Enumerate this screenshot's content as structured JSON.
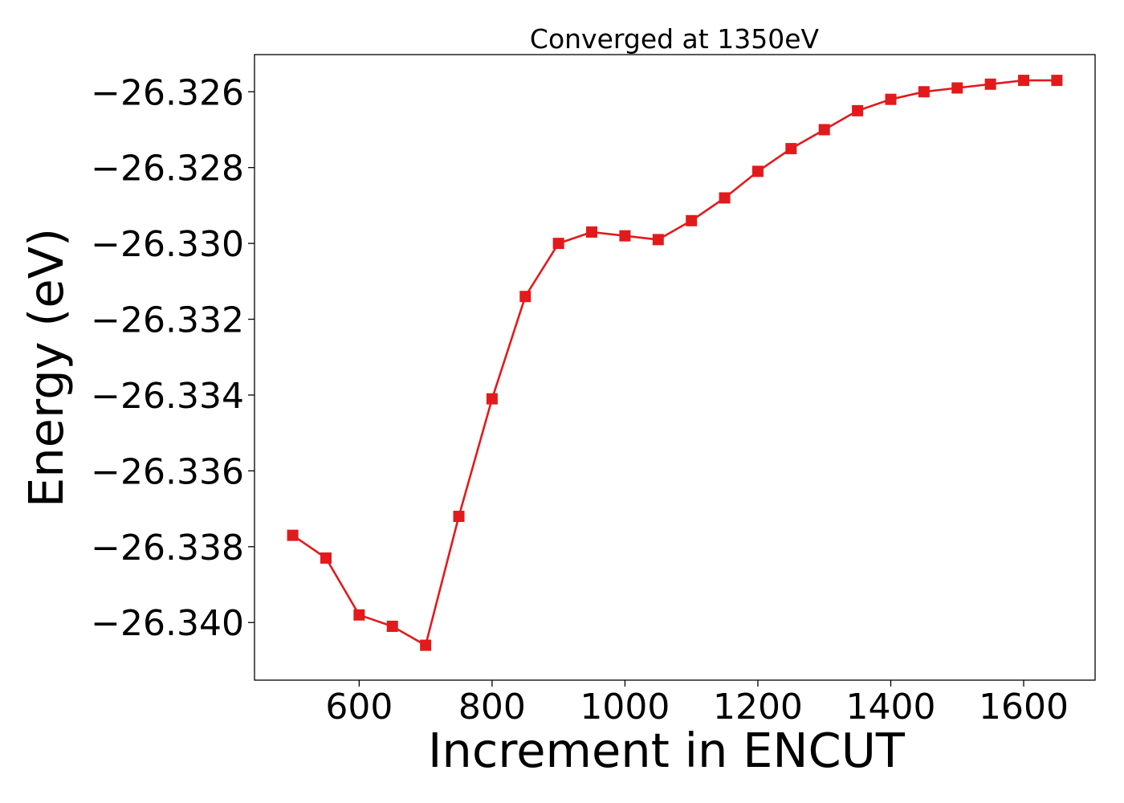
{
  "chart_data": {
    "type": "line",
    "title": "Converged at 1350eV",
    "xlabel": "Increment in ENCUT",
    "ylabel": "Energy (eV)",
    "xlim": [
      442.5,
      1707.5
    ],
    "ylim": [
      -26.34152,
      -26.32502
    ],
    "x_ticks": [
      600,
      800,
      1000,
      1200,
      1400,
      1600
    ],
    "y_ticks": [
      -26.326,
      -26.328,
      -26.33,
      -26.332,
      -26.334,
      -26.336,
      -26.338,
      -26.34
    ],
    "x_tick_labels": [
      "600",
      "800",
      "1000",
      "1200",
      "1400",
      "1600"
    ],
    "y_tick_labels": [
      "−26.326",
      "−26.328",
      "−26.330",
      "−26.332",
      "−26.334",
      "−26.336",
      "−26.338",
      "−26.340"
    ],
    "grid": false,
    "legend": "none",
    "series": [
      {
        "color": "#e31a1c",
        "marker": "square",
        "x": [
          500,
          550,
          600,
          650,
          700,
          750,
          800,
          850,
          900,
          950,
          1000,
          1050,
          1100,
          1150,
          1200,
          1250,
          1300,
          1350,
          1400,
          1450,
          1500,
          1550,
          1600,
          1650
        ],
        "y": [
          -26.3377,
          -26.3383,
          -26.3398,
          -26.3401,
          -26.3406,
          -26.3372,
          -26.3341,
          -26.3314,
          -26.33,
          -26.3297,
          -26.3298,
          -26.3299,
          -26.3294,
          -26.3288,
          -26.3281,
          -26.3275,
          -26.327,
          -26.3265,
          -26.3262,
          -26.326,
          -26.3259,
          -26.3258,
          -26.3257,
          -26.3257
        ]
      }
    ]
  }
}
